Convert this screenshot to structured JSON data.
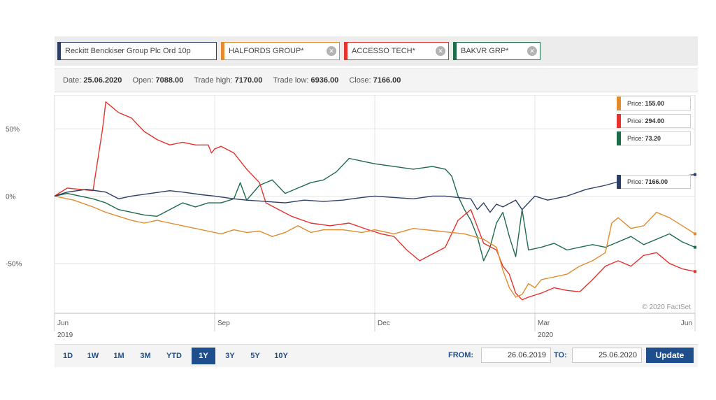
{
  "tabs": [
    {
      "label": "Reckitt Benckiser Group Plc Ord 10p",
      "color": "#2b3f66",
      "closable": false
    },
    {
      "label": "HALFORDS GROUP*",
      "color": "#e38b2e",
      "closable": true
    },
    {
      "label": "ACCESSO TECH*",
      "color": "#e8322d",
      "closable": true
    },
    {
      "label": "BAKVR GRP*",
      "color": "#1e6b4a",
      "closable": true
    }
  ],
  "info": {
    "date_label": "Date:",
    "date": "25.06.2020",
    "open_label": "Open:",
    "open": "7088.00",
    "high_label": "Trade high:",
    "high": "7170.00",
    "low_label": "Trade low:",
    "low": "6936.00",
    "close_label": "Close:",
    "close": "7166.00"
  },
  "price_boxes": [
    {
      "label": "Price:",
      "value": "155.00",
      "color": "#e38b2e"
    },
    {
      "label": "Price:",
      "value": "294.00",
      "color": "#e8322d"
    },
    {
      "label": "Price:",
      "value": "73.20",
      "color": "#1e6b4a"
    },
    {
      "label": "Price:",
      "value": "7166.00",
      "color": "#2b3f66"
    }
  ],
  "chart_data": {
    "type": "line",
    "xlabel": "",
    "ylabel": "",
    "x_ticks": [
      {
        "label": "Jun",
        "sub": "2019",
        "t": 0
      },
      {
        "label": "Sep",
        "sub": "",
        "t": 0.25
      },
      {
        "label": "Dec",
        "sub": "",
        "t": 0.5
      },
      {
        "label": "Mar",
        "sub": "2020",
        "t": 0.75
      },
      {
        "label": "Jun",
        "sub": "",
        "t": 1
      }
    ],
    "y_ticks": [
      {
        "label": "50%",
        "v": 50
      },
      {
        "label": "0%",
        "v": 0
      },
      {
        "label": "-50%",
        "v": -50
      }
    ],
    "ylim": [
      -87,
      75
    ],
    "xlim": [
      0,
      1
    ],
    "watermark": "© 2020 FactSet",
    "grid": true,
    "series": [
      {
        "name": "Reckitt Benckiser Group Plc Ord 10p",
        "color": "#2b3f66",
        "points": [
          [
            0,
            0
          ],
          [
            0.02,
            3
          ],
          [
            0.05,
            5
          ],
          [
            0.08,
            3
          ],
          [
            0.1,
            -2
          ],
          [
            0.12,
            0
          ],
          [
            0.15,
            2
          ],
          [
            0.18,
            4
          ],
          [
            0.2,
            3
          ],
          [
            0.23,
            1
          ],
          [
            0.25,
            0
          ],
          [
            0.28,
            -2
          ],
          [
            0.3,
            -3
          ],
          [
            0.33,
            -4
          ],
          [
            0.36,
            -5
          ],
          [
            0.39,
            -3
          ],
          [
            0.42,
            -4
          ],
          [
            0.45,
            -3
          ],
          [
            0.48,
            -1
          ],
          [
            0.5,
            0
          ],
          [
            0.53,
            -1
          ],
          [
            0.56,
            -2
          ],
          [
            0.59,
            0
          ],
          [
            0.61,
            0
          ],
          [
            0.63,
            -1
          ],
          [
            0.65,
            -2
          ],
          [
            0.66,
            -10
          ],
          [
            0.67,
            -5
          ],
          [
            0.68,
            -12
          ],
          [
            0.69,
            -6
          ],
          [
            0.7,
            -8
          ],
          [
            0.72,
            -3
          ],
          [
            0.73,
            -10
          ],
          [
            0.74,
            -5
          ],
          [
            0.75,
            0
          ],
          [
            0.77,
            -3
          ],
          [
            0.8,
            0
          ],
          [
            0.83,
            5
          ],
          [
            0.86,
            8
          ],
          [
            0.89,
            12
          ],
          [
            0.92,
            13
          ],
          [
            0.95,
            14
          ],
          [
            0.98,
            15
          ],
          [
            1,
            16
          ]
        ]
      },
      {
        "name": "HALFORDS GROUP*",
        "color": "#e38b2e",
        "points": [
          [
            0,
            0
          ],
          [
            0.03,
            -3
          ],
          [
            0.06,
            -8
          ],
          [
            0.08,
            -12
          ],
          [
            0.1,
            -15
          ],
          [
            0.12,
            -18
          ],
          [
            0.14,
            -20
          ],
          [
            0.16,
            -18
          ],
          [
            0.18,
            -20
          ],
          [
            0.2,
            -22
          ],
          [
            0.22,
            -24
          ],
          [
            0.24,
            -26
          ],
          [
            0.26,
            -28
          ],
          [
            0.28,
            -25
          ],
          [
            0.3,
            -27
          ],
          [
            0.32,
            -26
          ],
          [
            0.34,
            -30
          ],
          [
            0.36,
            -27
          ],
          [
            0.38,
            -22
          ],
          [
            0.4,
            -27
          ],
          [
            0.42,
            -25
          ],
          [
            0.45,
            -25
          ],
          [
            0.48,
            -27
          ],
          [
            0.5,
            -25
          ],
          [
            0.53,
            -28
          ],
          [
            0.56,
            -24
          ],
          [
            0.6,
            -26
          ],
          [
            0.64,
            -28
          ],
          [
            0.67,
            -32
          ],
          [
            0.69,
            -38
          ],
          [
            0.7,
            -55
          ],
          [
            0.71,
            -68
          ],
          [
            0.72,
            -75
          ],
          [
            0.73,
            -73
          ],
          [
            0.74,
            -65
          ],
          [
            0.75,
            -68
          ],
          [
            0.76,
            -62
          ],
          [
            0.78,
            -60
          ],
          [
            0.8,
            -58
          ],
          [
            0.82,
            -52
          ],
          [
            0.84,
            -48
          ],
          [
            0.86,
            -42
          ],
          [
            0.87,
            -20
          ],
          [
            0.88,
            -16
          ],
          [
            0.9,
            -24
          ],
          [
            0.92,
            -22
          ],
          [
            0.94,
            -12
          ],
          [
            0.96,
            -16
          ],
          [
            0.98,
            -22
          ],
          [
            1,
            -28
          ]
        ]
      },
      {
        "name": "ACCESSO TECH*",
        "color": "#e8322d",
        "points": [
          [
            0,
            0
          ],
          [
            0.02,
            6
          ],
          [
            0.04,
            5
          ],
          [
            0.06,
            4
          ],
          [
            0.075,
            50
          ],
          [
            0.08,
            70
          ],
          [
            0.09,
            66
          ],
          [
            0.1,
            62
          ],
          [
            0.12,
            58
          ],
          [
            0.14,
            48
          ],
          [
            0.16,
            42
          ],
          [
            0.18,
            38
          ],
          [
            0.2,
            40
          ],
          [
            0.22,
            38
          ],
          [
            0.24,
            38
          ],
          [
            0.245,
            32
          ],
          [
            0.25,
            35
          ],
          [
            0.26,
            37
          ],
          [
            0.28,
            32
          ],
          [
            0.3,
            20
          ],
          [
            0.32,
            10
          ],
          [
            0.33,
            -5
          ],
          [
            0.35,
            -10
          ],
          [
            0.37,
            -15
          ],
          [
            0.4,
            -20
          ],
          [
            0.43,
            -22
          ],
          [
            0.46,
            -20
          ],
          [
            0.49,
            -25
          ],
          [
            0.51,
            -28
          ],
          [
            0.53,
            -30
          ],
          [
            0.55,
            -40
          ],
          [
            0.57,
            -48
          ],
          [
            0.59,
            -43
          ],
          [
            0.61,
            -38
          ],
          [
            0.63,
            -18
          ],
          [
            0.65,
            -10
          ],
          [
            0.67,
            -35
          ],
          [
            0.69,
            -40
          ],
          [
            0.7,
            -52
          ],
          [
            0.71,
            -58
          ],
          [
            0.72,
            -72
          ],
          [
            0.73,
            -77
          ],
          [
            0.74,
            -75
          ],
          [
            0.76,
            -72
          ],
          [
            0.78,
            -68
          ],
          [
            0.8,
            -70
          ],
          [
            0.82,
            -71
          ],
          [
            0.84,
            -62
          ],
          [
            0.86,
            -52
          ],
          [
            0.88,
            -48
          ],
          [
            0.9,
            -52
          ],
          [
            0.92,
            -44
          ],
          [
            0.94,
            -42
          ],
          [
            0.96,
            -50
          ],
          [
            0.98,
            -54
          ],
          [
            1,
            -56
          ]
        ]
      },
      {
        "name": "BAKVR GRP*",
        "color": "#1e6b4a",
        "points": [
          [
            0,
            0
          ],
          [
            0.02,
            2
          ],
          [
            0.04,
            0
          ],
          [
            0.06,
            -2
          ],
          [
            0.08,
            -5
          ],
          [
            0.1,
            -10
          ],
          [
            0.12,
            -12
          ],
          [
            0.14,
            -14
          ],
          [
            0.16,
            -15
          ],
          [
            0.18,
            -10
          ],
          [
            0.2,
            -5
          ],
          [
            0.22,
            -8
          ],
          [
            0.24,
            -5
          ],
          [
            0.26,
            -5
          ],
          [
            0.28,
            -2
          ],
          [
            0.29,
            10
          ],
          [
            0.3,
            -3
          ],
          [
            0.32,
            8
          ],
          [
            0.34,
            12
          ],
          [
            0.36,
            2
          ],
          [
            0.38,
            6
          ],
          [
            0.4,
            10
          ],
          [
            0.42,
            12
          ],
          [
            0.44,
            18
          ],
          [
            0.46,
            28
          ],
          [
            0.48,
            26
          ],
          [
            0.5,
            24
          ],
          [
            0.53,
            22
          ],
          [
            0.56,
            20
          ],
          [
            0.59,
            22
          ],
          [
            0.61,
            20
          ],
          [
            0.62,
            15
          ],
          [
            0.63,
            0
          ],
          [
            0.64,
            -10
          ],
          [
            0.65,
            -18
          ],
          [
            0.66,
            -30
          ],
          [
            0.67,
            -48
          ],
          [
            0.68,
            -38
          ],
          [
            0.69,
            -20
          ],
          [
            0.7,
            -12
          ],
          [
            0.71,
            -30
          ],
          [
            0.72,
            -45
          ],
          [
            0.73,
            -10
          ],
          [
            0.74,
            -40
          ],
          [
            0.76,
            -38
          ],
          [
            0.78,
            -35
          ],
          [
            0.8,
            -40
          ],
          [
            0.82,
            -38
          ],
          [
            0.84,
            -36
          ],
          [
            0.86,
            -38
          ],
          [
            0.88,
            -34
          ],
          [
            0.9,
            -30
          ],
          [
            0.92,
            -36
          ],
          [
            0.94,
            -32
          ],
          [
            0.96,
            -28
          ],
          [
            0.98,
            -34
          ],
          [
            1,
            -38
          ]
        ]
      }
    ]
  },
  "range_buttons": [
    {
      "label": "1D",
      "active": false
    },
    {
      "label": "1W",
      "active": false
    },
    {
      "label": "1M",
      "active": false
    },
    {
      "label": "3M",
      "active": false
    },
    {
      "label": "YTD",
      "active": false
    },
    {
      "label": "1Y",
      "active": true
    },
    {
      "label": "3Y",
      "active": false
    },
    {
      "label": "5Y",
      "active": false
    },
    {
      "label": "10Y",
      "active": false
    }
  ],
  "date_range": {
    "from_label": "FROM:",
    "from_value": "26.06.2019",
    "to_label": "TO:",
    "to_value": "25.06.2020",
    "update_label": "Update"
  }
}
